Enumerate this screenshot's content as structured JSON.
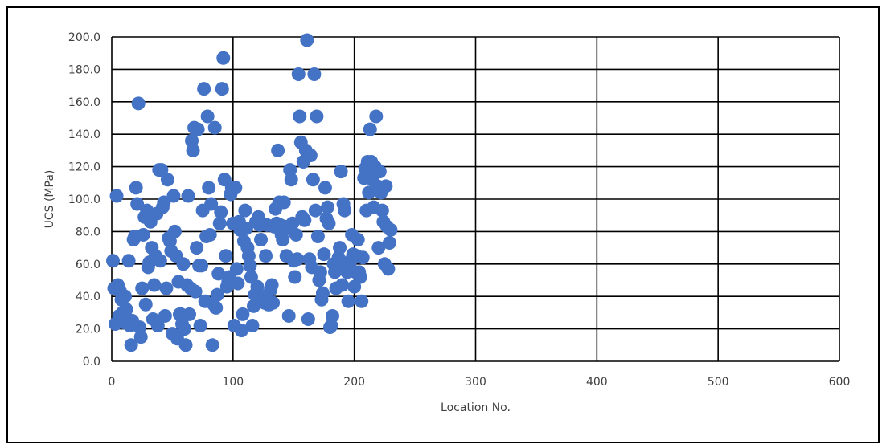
{
  "chart_data": {
    "type": "scatter",
    "xlabel": "Location No.",
    "ylabel": "UCS (MPa)",
    "xlim": [
      0,
      600
    ],
    "ylim": [
      0,
      200
    ],
    "xticks": [
      0,
      100,
      200,
      300,
      400,
      500,
      600
    ],
    "yticks": [
      0,
      20,
      40,
      60,
      80,
      100,
      120,
      140,
      160,
      180,
      200
    ],
    "xtick_labels": [
      "0",
      "100",
      "200",
      "300",
      "400",
      "500",
      "600"
    ],
    "ytick_labels": [
      "0.0",
      "20.0",
      "40.0",
      "60.0",
      "80.0",
      "100.0",
      "120.0",
      "140.0",
      "160.0",
      "180.0",
      "200.0"
    ],
    "grid": true,
    "marker_color": "#4472C4",
    "series": [
      {
        "points": [
          [
            1,
            62
          ],
          [
            2,
            45
          ],
          [
            3,
            23
          ],
          [
            4,
            102
          ],
          [
            5,
            47
          ],
          [
            6,
            28
          ],
          [
            7,
            43
          ],
          [
            8,
            38
          ],
          [
            9,
            30
          ],
          [
            10,
            24
          ],
          [
            11,
            40
          ],
          [
            12,
            32
          ],
          [
            13,
            26
          ],
          [
            14,
            62
          ],
          [
            15,
            22
          ],
          [
            16,
            10
          ],
          [
            17,
            25
          ],
          [
            18,
            75
          ],
          [
            19,
            77
          ],
          [
            20,
            107
          ],
          [
            21,
            97
          ],
          [
            22,
            159
          ],
          [
            23,
            21
          ],
          [
            24,
            15
          ],
          [
            25,
            45
          ],
          [
            26,
            78
          ],
          [
            27,
            89
          ],
          [
            28,
            35
          ],
          [
            29,
            93
          ],
          [
            30,
            58
          ],
          [
            31,
            61
          ],
          [
            32,
            86
          ],
          [
            33,
            70
          ],
          [
            34,
            26
          ],
          [
            35,
            47
          ],
          [
            36,
            65
          ],
          [
            37,
            91
          ],
          [
            38,
            22
          ],
          [
            39,
            118
          ],
          [
            40,
            62
          ],
          [
            41,
            118
          ],
          [
            42,
            95
          ],
          [
            43,
            98
          ],
          [
            44,
            28
          ],
          [
            45,
            45
          ],
          [
            46,
            112
          ],
          [
            47,
            76
          ],
          [
            48,
            74
          ],
          [
            49,
            68
          ],
          [
            50,
            17
          ],
          [
            51,
            102
          ],
          [
            52,
            80
          ],
          [
            53,
            65
          ],
          [
            54,
            14
          ],
          [
            55,
            49
          ],
          [
            56,
            29
          ],
          [
            57,
            29
          ],
          [
            58,
            23
          ],
          [
            59,
            60
          ],
          [
            60,
            20
          ],
          [
            61,
            10
          ],
          [
            62,
            47
          ],
          [
            63,
            102
          ],
          [
            64,
            29
          ],
          [
            65,
            45
          ],
          [
            66,
            136
          ],
          [
            67,
            130
          ],
          [
            68,
            144
          ],
          [
            69,
            43
          ],
          [
            70,
            70
          ],
          [
            71,
            143
          ],
          [
            72,
            59
          ],
          [
            73,
            22
          ],
          [
            74,
            59
          ],
          [
            75,
            93
          ],
          [
            76,
            168
          ],
          [
            77,
            37
          ],
          [
            78,
            77
          ],
          [
            79,
            151
          ],
          [
            80,
            107
          ],
          [
            81,
            78
          ],
          [
            82,
            97
          ],
          [
            83,
            10
          ],
          [
            84,
            35
          ],
          [
            85,
            144
          ],
          [
            86,
            33
          ],
          [
            87,
            41
          ],
          [
            88,
            54
          ],
          [
            89,
            85
          ],
          [
            90,
            92
          ],
          [
            91,
            168
          ],
          [
            92,
            187
          ],
          [
            93,
            112
          ],
          [
            94,
            65
          ],
          [
            95,
            46
          ],
          [
            96,
            49
          ],
          [
            97,
            52
          ],
          [
            98,
            103
          ],
          [
            99,
            107
          ],
          [
            100,
            85
          ],
          [
            101,
            22
          ],
          [
            102,
            107
          ],
          [
            103,
            57
          ],
          [
            104,
            48
          ],
          [
            105,
            86
          ],
          [
            106,
            81
          ],
          [
            107,
            19
          ],
          [
            108,
            29
          ],
          [
            109,
            74
          ],
          [
            110,
            93
          ],
          [
            111,
            82
          ],
          [
            112,
            70
          ],
          [
            113,
            65
          ],
          [
            114,
            59
          ],
          [
            115,
            52
          ],
          [
            116,
            22
          ],
          [
            117,
            34
          ],
          [
            118,
            41
          ],
          [
            119,
            86
          ],
          [
            120,
            46
          ],
          [
            121,
            89
          ],
          [
            122,
            84
          ],
          [
            123,
            75
          ],
          [
            124,
            38
          ],
          [
            125,
            40
          ],
          [
            126,
            36
          ],
          [
            127,
            65
          ],
          [
            128,
            84
          ],
          [
            129,
            35
          ],
          [
            130,
            35
          ],
          [
            131,
            44
          ],
          [
            132,
            47
          ],
          [
            133,
            36
          ],
          [
            134,
            83
          ],
          [
            135,
            94
          ],
          [
            136,
            85
          ],
          [
            137,
            130
          ],
          [
            138,
            98
          ],
          [
            139,
            84
          ],
          [
            140,
            78
          ],
          [
            141,
            75
          ],
          [
            142,
            98
          ],
          [
            143,
            83
          ],
          [
            144,
            65
          ],
          [
            145,
            82
          ],
          [
            146,
            28
          ],
          [
            147,
            118
          ],
          [
            148,
            112
          ],
          [
            149,
            85
          ],
          [
            150,
            62
          ],
          [
            151,
            52
          ],
          [
            152,
            78
          ],
          [
            153,
            63
          ],
          [
            154,
            177
          ],
          [
            155,
            151
          ],
          [
            156,
            135
          ],
          [
            157,
            89
          ],
          [
            158,
            123
          ],
          [
            159,
            87
          ],
          [
            160,
            130
          ],
          [
            161,
            198
          ],
          [
            162,
            26
          ],
          [
            163,
            63
          ],
          [
            164,
            127
          ],
          [
            165,
            58
          ],
          [
            166,
            112
          ],
          [
            167,
            177
          ],
          [
            168,
            93
          ],
          [
            169,
            151
          ],
          [
            170,
            77
          ],
          [
            171,
            50
          ],
          [
            172,
            55
          ],
          [
            173,
            38
          ],
          [
            174,
            42
          ],
          [
            175,
            66
          ],
          [
            176,
            107
          ],
          [
            177,
            88
          ],
          [
            178,
            95
          ],
          [
            179,
            85
          ],
          [
            180,
            21
          ],
          [
            181,
            22
          ],
          [
            182,
            28
          ],
          [
            183,
            60
          ],
          [
            184,
            55
          ],
          [
            185,
            45
          ],
          [
            186,
            58
          ],
          [
            187,
            64
          ],
          [
            188,
            70
          ],
          [
            189,
            117
          ],
          [
            190,
            47
          ],
          [
            191,
            97
          ],
          [
            192,
            93
          ],
          [
            193,
            60
          ],
          [
            194,
            55
          ],
          [
            195,
            37
          ],
          [
            196,
            59
          ],
          [
            197,
            62
          ],
          [
            198,
            78
          ],
          [
            199,
            66
          ],
          [
            200,
            46
          ],
          [
            201,
            55
          ],
          [
            202,
            65
          ],
          [
            203,
            75
          ],
          [
            204,
            55
          ],
          [
            205,
            52
          ],
          [
            206,
            37
          ],
          [
            207,
            64
          ],
          [
            208,
            113
          ],
          [
            209,
            119
          ],
          [
            210,
            93
          ],
          [
            211,
            123
          ],
          [
            212,
            104
          ],
          [
            213,
            143
          ],
          [
            214,
            123
          ],
          [
            215,
            112
          ],
          [
            216,
            95
          ],
          [
            217,
            120
          ],
          [
            218,
            151
          ],
          [
            219,
            108
          ],
          [
            220,
            70
          ],
          [
            221,
            117
          ],
          [
            222,
            104
          ],
          [
            223,
            93
          ],
          [
            224,
            86
          ],
          [
            225,
            60
          ],
          [
            226,
            108
          ],
          [
            227,
            83
          ],
          [
            228,
            57
          ],
          [
            229,
            73
          ],
          [
            230,
            81
          ]
        ]
      }
    ]
  }
}
